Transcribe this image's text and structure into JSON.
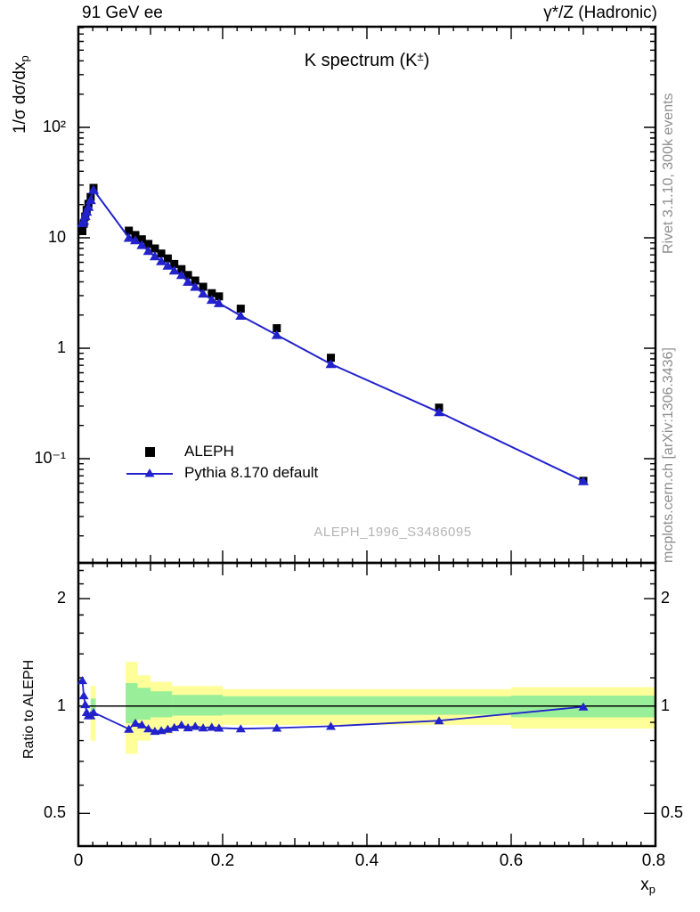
{
  "header": {
    "left": "91 GeV ee",
    "right": "γ*/Z (Hadronic)"
  },
  "titles": {
    "main": "K spectrum",
    "paren_open": " (",
    "particle": "K",
    "charge": "±",
    "paren_close": ")"
  },
  "axes": {
    "y_main_label_pre": "1/σ dσ/dx",
    "y_main_label_sub": "p",
    "x_label_main": "x",
    "x_label_sub": "p",
    "ratio_label": "Ratio to ALEPH",
    "y_main_ticks": [
      "10²",
      "10",
      "1",
      "10⁻¹"
    ],
    "ratio_ticks": [
      "2",
      "1",
      "0.5"
    ],
    "x_ticks": [
      "0",
      "0.2",
      "0.4",
      "0.6",
      "0.8"
    ]
  },
  "legend": {
    "items": [
      {
        "label": "ALEPH"
      },
      {
        "label": "Pythia 8.170 default"
      }
    ]
  },
  "watermark": "ALEPH_1996_S3486095",
  "side_notes": {
    "top": "Rivet 3.1.10,  300k events",
    "bottom": "mcplots.cern.ch [arXiv:1306.3436]"
  },
  "colors": {
    "data_black": "#000000",
    "mc_blue": "#2222cc",
    "band_yellow": "#ffff99",
    "band_green": "#99ee99",
    "gray_note": "#8e8e8e",
    "gray_watermark": "#b4b4b4"
  },
  "chart_data": {
    "type": "line",
    "title": "K spectrum (K±)",
    "subtitle": "91 GeV ee, γ*/Z (Hadronic)",
    "xlabel": "x_p",
    "ylabel": "1/σ dσ/dx_p",
    "ratio_ylabel": "Ratio to ALEPH",
    "x_scale": "linear",
    "y_scale": "log",
    "xlim": [
      0,
      0.8
    ],
    "ylim_main": [
      0.0114,
      815
    ],
    "ylim_ratio": [
      0.405,
      2.52
    ],
    "grid": false,
    "legend_position": "left-middle",
    "x_major_ticks": [
      0,
      0.2,
      0.4,
      0.6,
      0.8
    ],
    "x": [
      0.0055,
      0.0075,
      0.0095,
      0.0115,
      0.014,
      0.017,
      0.021,
      0.07,
      0.079,
      0.088,
      0.097,
      0.106,
      0.115,
      0.124,
      0.133,
      0.143,
      0.152,
      0.162,
      0.173,
      0.185,
      0.195,
      0.225,
      0.275,
      0.35,
      0.5,
      0.7
    ],
    "series": [
      {
        "name": "ALEPH",
        "marker": "square",
        "color": "#000000",
        "line": false,
        "values": [
          11.5,
          13.4,
          15.6,
          17.9,
          20.3,
          23.4,
          28.3,
          11.6,
          10.6,
          9.7,
          8.8,
          8.0,
          7.2,
          6.5,
          5.8,
          5.2,
          4.6,
          4.1,
          3.6,
          3.15,
          2.95,
          2.28,
          1.52,
          0.82,
          0.29,
          0.063
        ]
      },
      {
        "name": "Pythia 8.170 default",
        "marker": "triangle",
        "color": "#2222cc",
        "line": true,
        "values": [
          13.6,
          14.3,
          15.8,
          17.2,
          19.1,
          22.0,
          27.2,
          10.0,
          9.5,
          8.6,
          7.6,
          6.8,
          6.15,
          5.6,
          5.05,
          4.6,
          4.0,
          3.6,
          3.13,
          2.75,
          2.56,
          1.97,
          1.32,
          0.72,
          0.264,
          0.0627
        ]
      }
    ],
    "ratio": {
      "name": "Pythia 8.170 default / ALEPH",
      "reference_line": 1,
      "values": [
        1.18,
        1.07,
        1.01,
        0.96,
        0.94,
        0.94,
        0.96,
        0.862,
        0.896,
        0.886,
        0.864,
        0.85,
        0.854,
        0.862,
        0.871,
        0.885,
        0.87,
        0.878,
        0.869,
        0.873,
        0.868,
        0.864,
        0.868,
        0.878,
        0.91,
        0.995
      ],
      "bands": {
        "yellow": [
          [
            0.017,
            0.024,
            0.8,
            1.14
          ],
          [
            0.0655,
            0.082,
            0.735,
            1.33
          ],
          [
            0.082,
            0.1,
            0.8,
            1.22
          ],
          [
            0.1,
            0.13,
            0.835,
            1.17
          ],
          [
            0.13,
            0.2,
            0.862,
            1.138
          ],
          [
            0.2,
            0.6,
            0.885,
            1.115
          ],
          [
            0.6,
            0.8,
            0.865,
            1.13
          ]
        ],
        "green": [
          [
            0.017,
            0.024,
            0.95,
            1.05
          ],
          [
            0.0655,
            0.082,
            0.895,
            1.16
          ],
          [
            0.082,
            0.1,
            0.915,
            1.125
          ],
          [
            0.1,
            0.13,
            0.93,
            1.1
          ],
          [
            0.13,
            0.2,
            0.94,
            1.075
          ],
          [
            0.2,
            0.6,
            0.945,
            1.065
          ],
          [
            0.6,
            0.8,
            0.93,
            1.07
          ]
        ]
      }
    }
  }
}
